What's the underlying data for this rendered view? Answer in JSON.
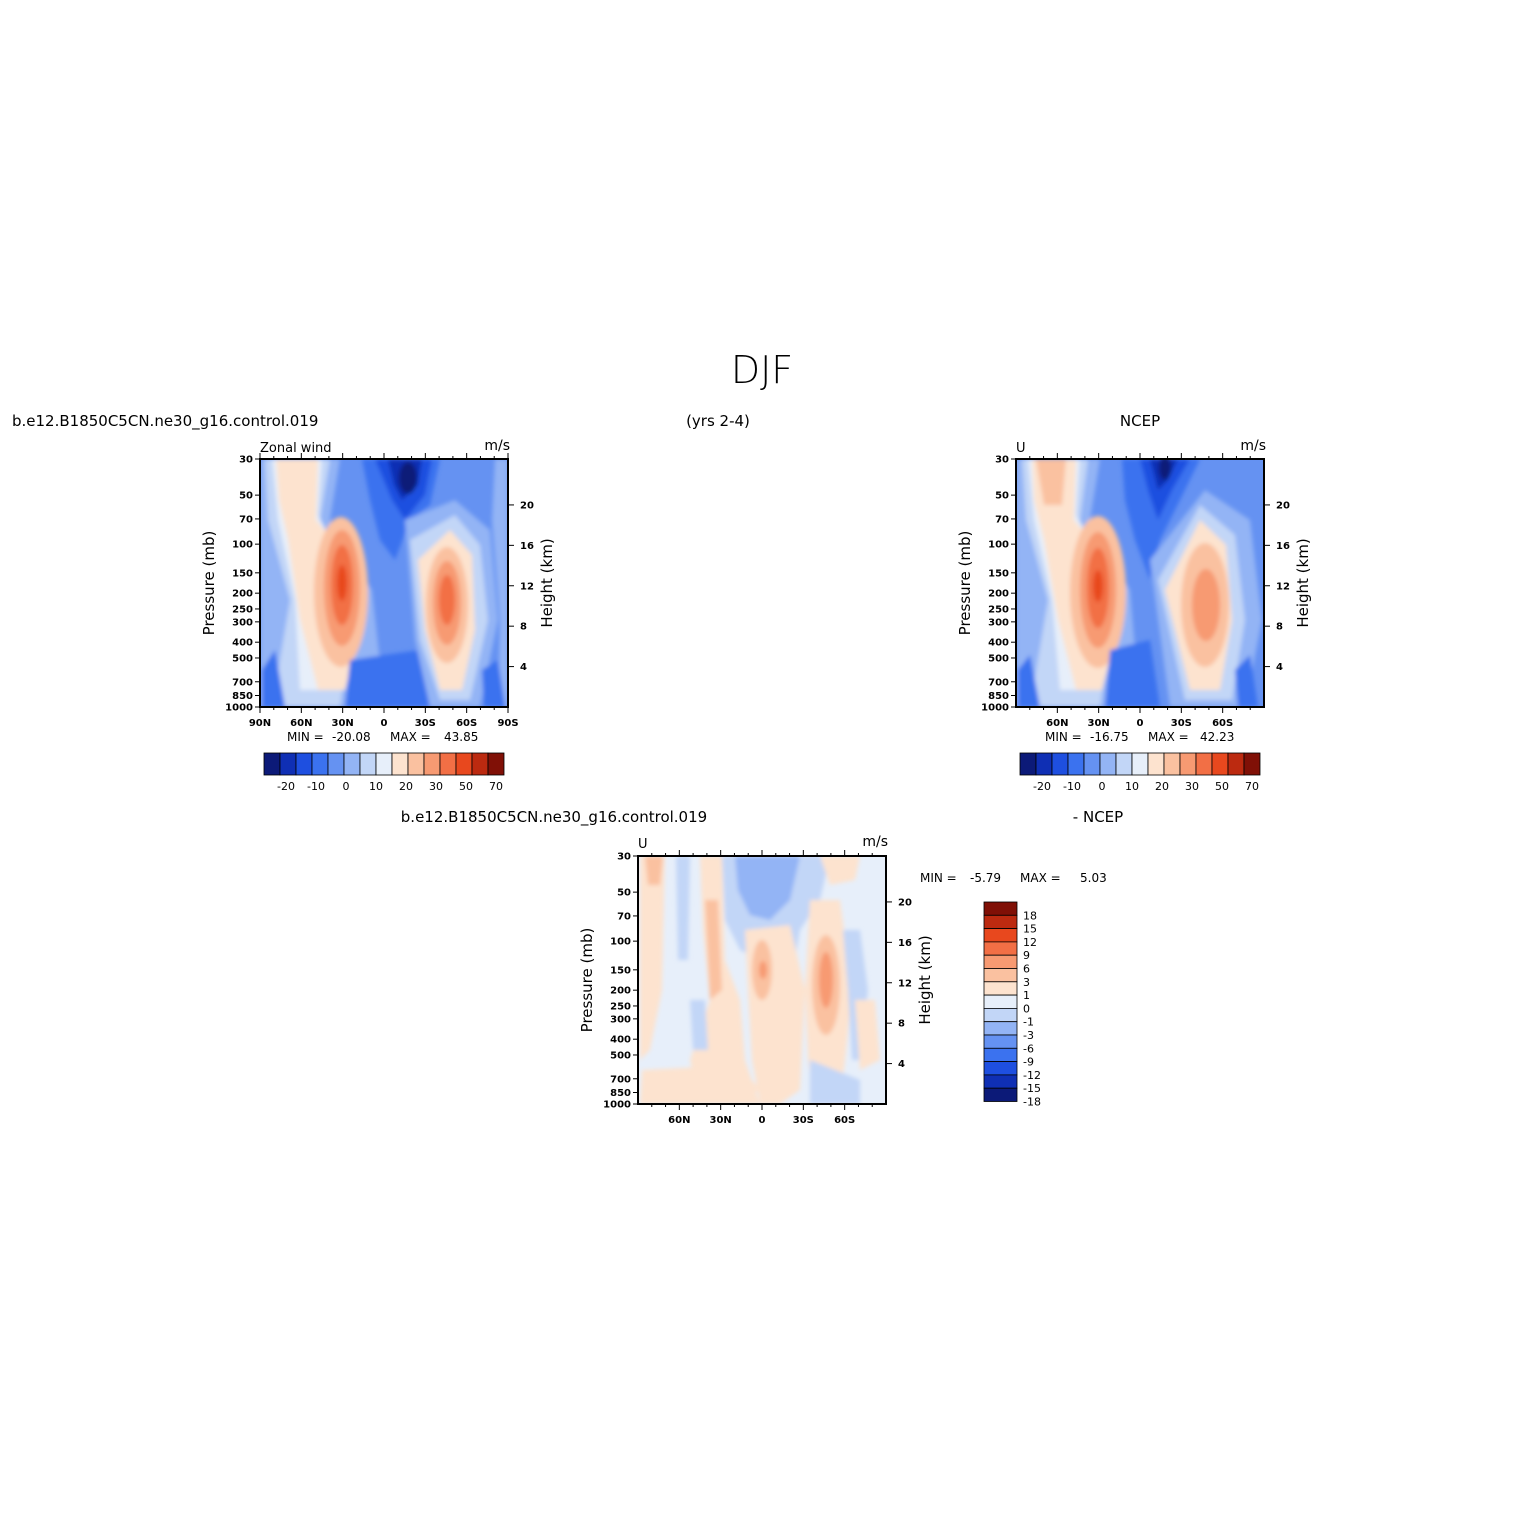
{
  "figure": {
    "title": "DJF",
    "case_left": "b.e12.B1850C5CN.ne30_g16.control.019",
    "yrs": "(yrs 2-4)",
    "case_right": "NCEP",
    "case_diff": "b.e12.B1850C5CN.ne30_g16.control.019",
    "diff_suffix": "- NCEP"
  },
  "colors": {
    "levels13": [
      "#0c1a78",
      "#0f2fb4",
      "#1e4fe0",
      "#3b72ef",
      "#6592f2",
      "#93b4f5",
      "#c2d6f7",
      "#e7effa",
      "#fde3cf",
      "#fac1a0",
      "#f79a72",
      "#f26f45",
      "#e8481e",
      "#bc2a10",
      "#801006"
    ],
    "diff_levels": [
      "#0c1a78",
      "#0f2fb4",
      "#1e4fe0",
      "#3b72ef",
      "#6592f2",
      "#93b4f5",
      "#c2d6f7",
      "#e7effa",
      "#fde3cf",
      "#fac1a0",
      "#f79a72",
      "#f26f45",
      "#e8481e",
      "#bc2a10",
      "#801006"
    ]
  },
  "chart_data": [
    {
      "type": "heatmap",
      "title": "Zonal wind",
      "units": "m/s",
      "ylabel": "Pressure (mb)",
      "ylabel_right": "Height (km)",
      "xticks": [
        "90N",
        "60N",
        "30N",
        "0",
        "30S",
        "60S",
        "90S"
      ],
      "yticks": [
        "30",
        "50",
        "70",
        "100",
        "150",
        "200",
        "250",
        "300",
        "400",
        "500",
        "700",
        "850",
        "1000"
      ],
      "yticks_right": [
        "20",
        "16",
        "12",
        "8",
        "4"
      ],
      "min_label": "MIN =",
      "min": "-20.08",
      "max_label": "MAX =",
      "max": "43.85",
      "colorbar_labels": [
        "-20",
        "-10",
        "0",
        "10",
        "20",
        "30",
        "50",
        "70"
      ],
      "jets": [
        {
          "lat": 30,
          "pressure": 200,
          "max": 43.85
        },
        {
          "lat": -45,
          "pressure": 200,
          "max": 30
        }
      ]
    },
    {
      "type": "heatmap",
      "title": "U",
      "units": "m/s",
      "ylabel": "Pressure (mb)",
      "ylabel_right": "Height (km)",
      "xticks": [
        "60N",
        "30N",
        "0",
        "30S",
        "60S"
      ],
      "yticks": [
        "30",
        "50",
        "70",
        "100",
        "150",
        "200",
        "250",
        "300",
        "400",
        "500",
        "700",
        "850",
        "1000"
      ],
      "yticks_right": [
        "20",
        "16",
        "12",
        "8",
        "4"
      ],
      "min_label": "MIN =",
      "min": "-16.75",
      "max_label": "MAX =",
      "max": "42.23",
      "colorbar_labels": [
        "-20",
        "-10",
        "0",
        "10",
        "20",
        "30",
        "50",
        "70"
      ],
      "jets": [
        {
          "lat": 30,
          "pressure": 200,
          "max": 42.23
        },
        {
          "lat": -45,
          "pressure": 250,
          "max": 28
        }
      ]
    },
    {
      "type": "heatmap",
      "title": "U",
      "units": "m/s",
      "ylabel": "Pressure (mb)",
      "ylabel_right": "Height (km)",
      "xticks": [
        "60N",
        "30N",
        "0",
        "30S",
        "60S"
      ],
      "yticks": [
        "30",
        "50",
        "70",
        "100",
        "150",
        "200",
        "250",
        "300",
        "400",
        "500",
        "700",
        "850",
        "1000"
      ],
      "yticks_right": [
        "20",
        "16",
        "12",
        "8",
        "4"
      ],
      "min_label": "MIN =",
      "min": "-5.79",
      "max_label": "MAX =",
      "max": "5.03",
      "colorbar_labels": [
        "18",
        "15",
        "12",
        "9",
        "6",
        "3",
        "1",
        "0",
        "-1",
        "-3",
        "-6",
        "-9",
        "-12",
        "-15",
        "-18"
      ]
    }
  ]
}
